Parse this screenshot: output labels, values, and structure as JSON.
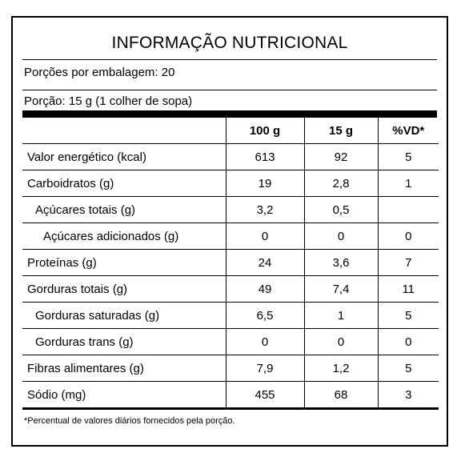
{
  "title": "INFORMAÇÃO NUTRICIONAL",
  "servings_per_package": "Porções por embalagem: 20",
  "serving_size": "Porção: 15 g (1 colher de sopa)",
  "columns": [
    "",
    "100 g",
    "15 g",
    "%VD*"
  ],
  "rows": [
    {
      "name": "Valor energético (kcal)",
      "per100": "613",
      "per15": "92",
      "vd": "5"
    },
    {
      "name": "Carboidratos (g)",
      "per100": "19",
      "per15": "2,8",
      "vd": "1"
    },
    {
      "name": "Açúcares totais (g)",
      "per100": "3,2",
      "per15": "0,5",
      "vd": ""
    },
    {
      "name": "Açúcares adicionados (g)",
      "per100": "0",
      "per15": "0",
      "vd": "0"
    },
    {
      "name": "Proteínas (g)",
      "per100": "24",
      "per15": "3,6",
      "vd": "7"
    },
    {
      "name": "Gorduras totais (g)",
      "per100": "49",
      "per15": "7,4",
      "vd": "11"
    },
    {
      "name": "Gorduras saturadas (g)",
      "per100": "6,5",
      "per15": "1",
      "vd": "5"
    },
    {
      "name": "Gorduras trans (g)",
      "per100": "0",
      "per15": "0",
      "vd": "0"
    },
    {
      "name": "Fibras alimentares (g)",
      "per100": "7,9",
      "per15": "1,2",
      "vd": "5"
    },
    {
      "name": "Sódio (mg)",
      "per100": "455",
      "per15": "68",
      "vd": "3"
    }
  ],
  "footnote": "*Percentual de valores diários fornecidos pela porção."
}
